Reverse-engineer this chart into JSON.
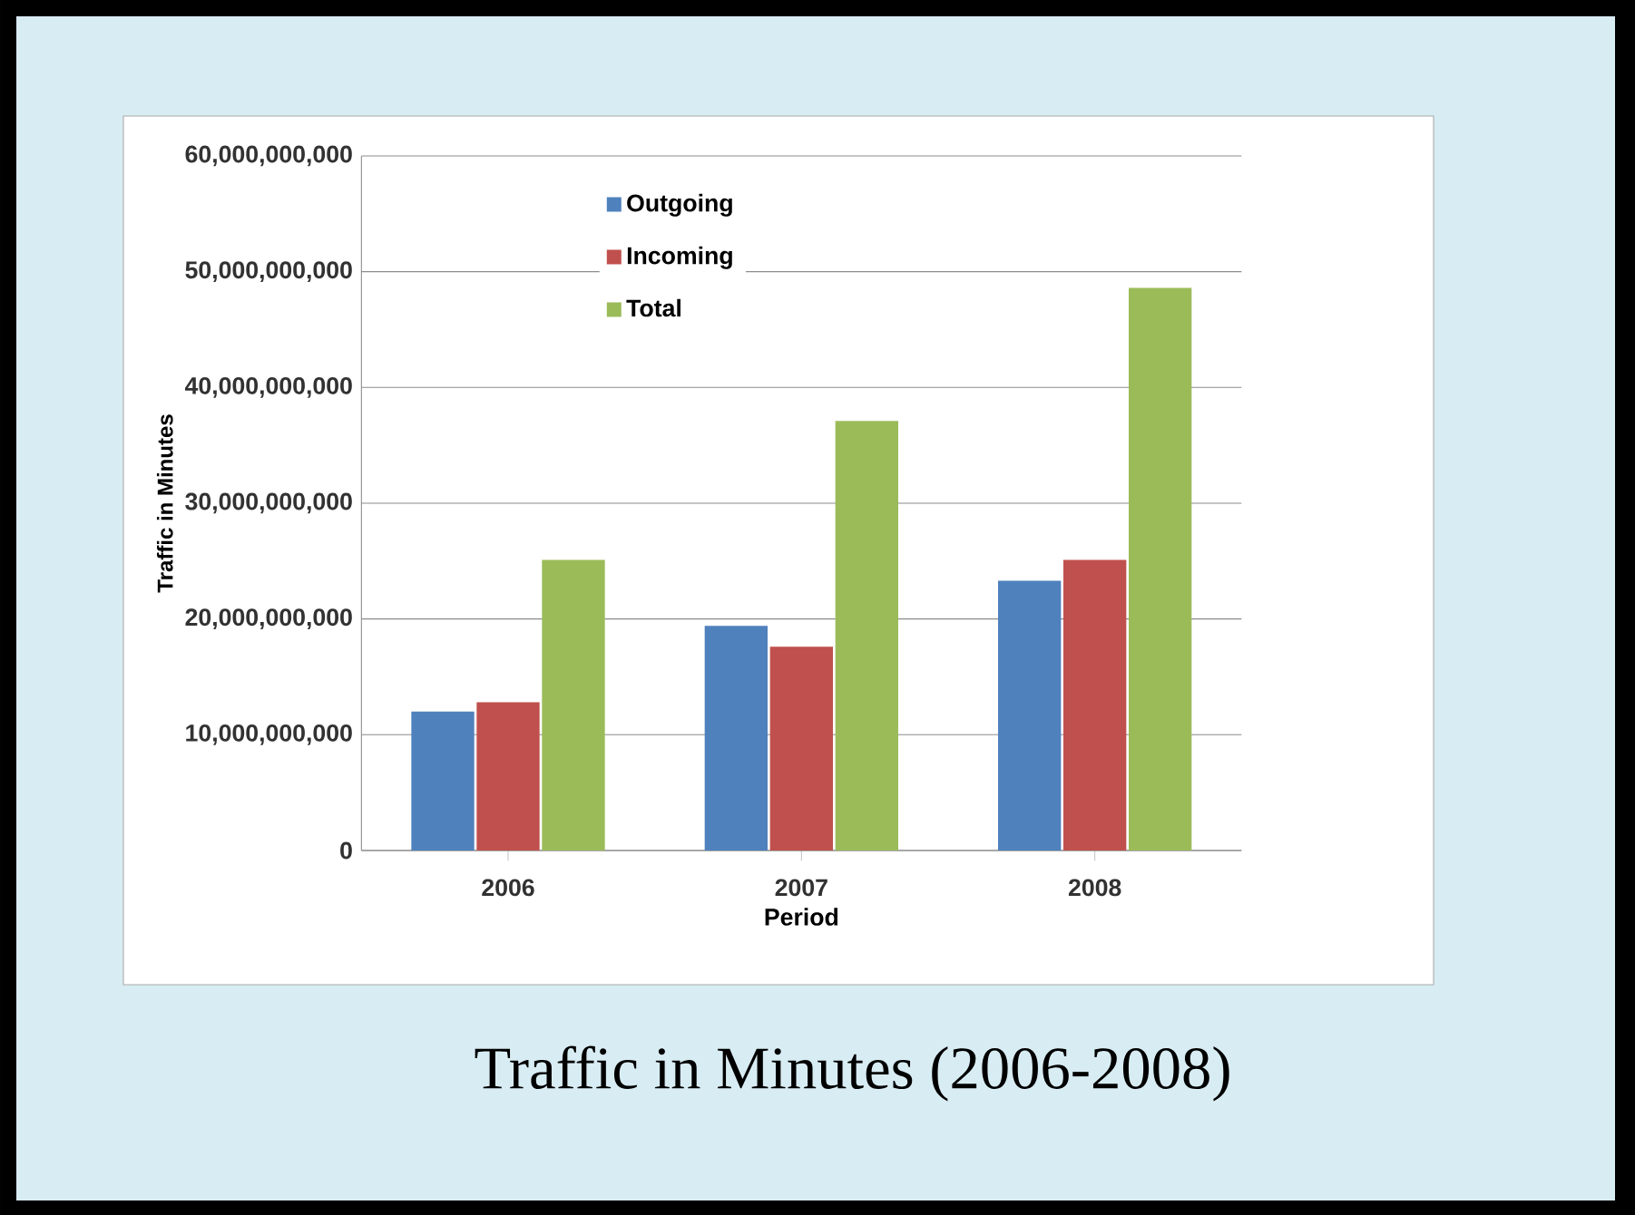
{
  "chart_data": {
    "type": "bar",
    "title": "Traffic in Minutes (2006-2008)",
    "xlabel": "Period",
    "ylabel": "Traffic in Minutes",
    "categories": [
      "2006",
      "2007",
      "2008"
    ],
    "series": [
      {
        "name": "Outgoing",
        "color": "#4f81bd",
        "values": [
          12000000000,
          19400000000,
          23300000000
        ]
      },
      {
        "name": "Incoming",
        "color": "#c0504d",
        "values": [
          12800000000,
          17600000000,
          25100000000
        ]
      },
      {
        "name": "Total",
        "color": "#9bbb59",
        "values": [
          25100000000,
          37100000000,
          48600000000
        ]
      }
    ],
    "ylim": [
      0,
      60000000000
    ],
    "yticks": [
      {
        "value": 0,
        "label": "0"
      },
      {
        "value": 10000000000,
        "label": "10,000,000,000"
      },
      {
        "value": 20000000000,
        "label": "20,000,000,000"
      },
      {
        "value": 30000000000,
        "label": "30,000,000,000"
      },
      {
        "value": 40000000000,
        "label": "40,000,000,000"
      },
      {
        "value": 50000000000,
        "label": "50,000,000,000"
      },
      {
        "value": 60000000000,
        "label": "60,000,000,000"
      }
    ],
    "grid": "y",
    "legend": "top"
  }
}
